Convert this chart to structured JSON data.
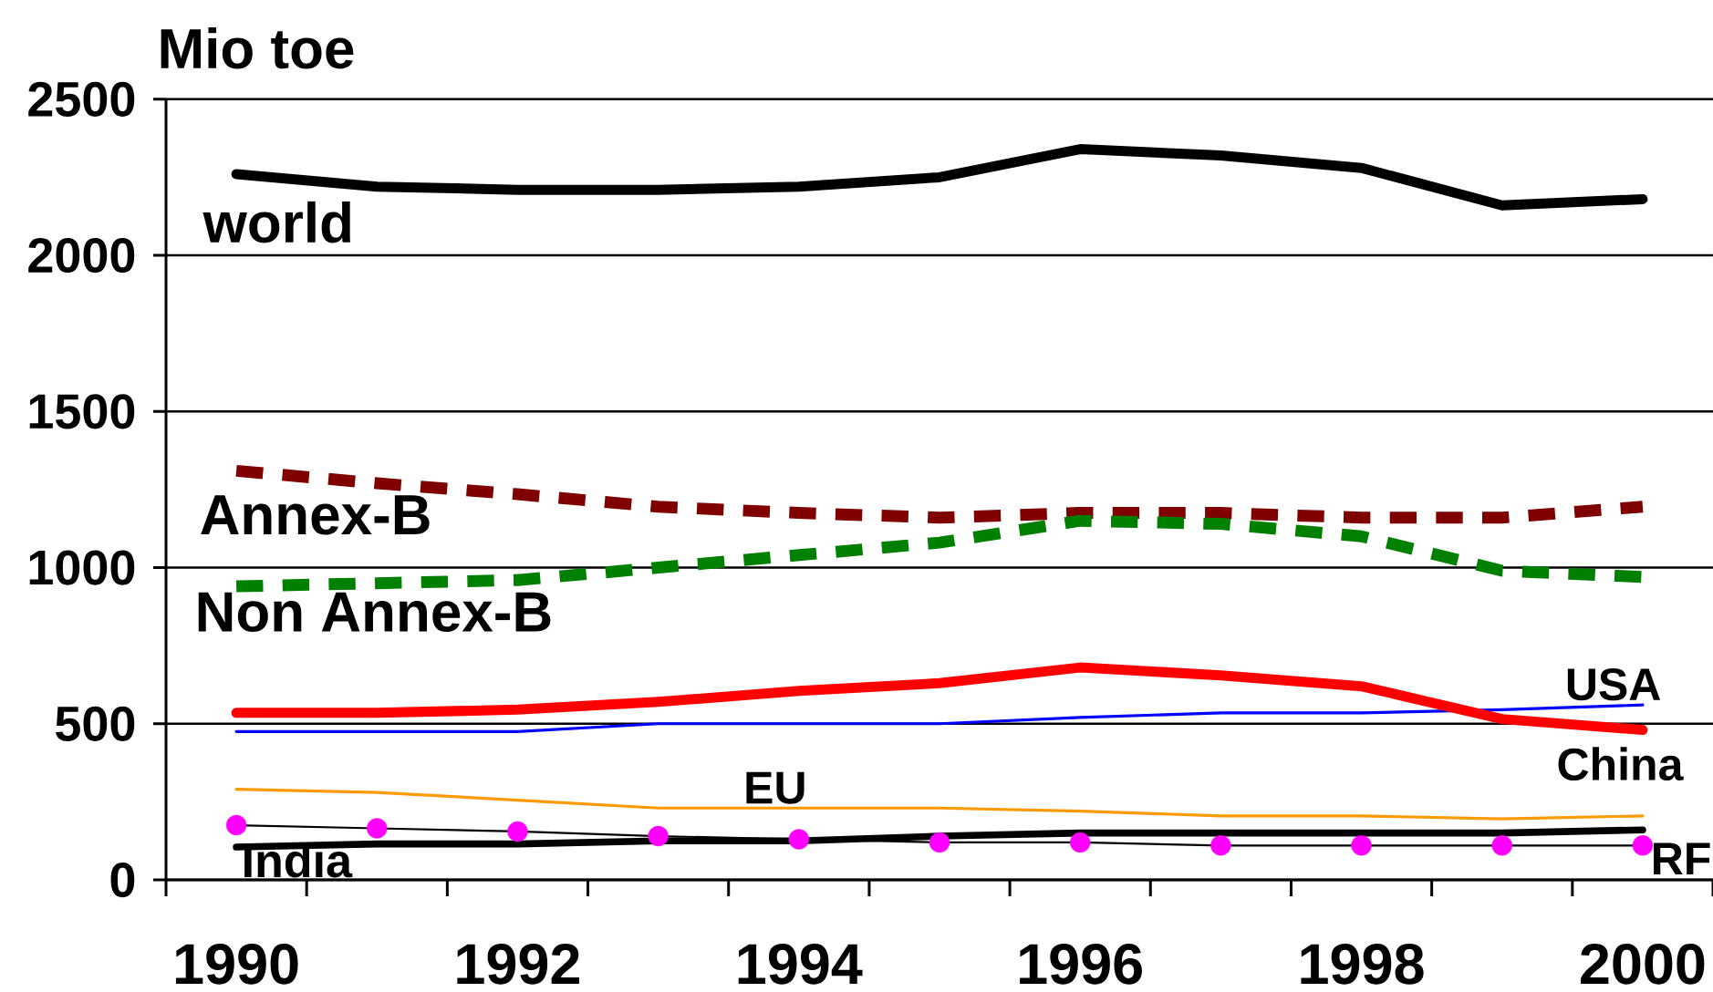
{
  "chart_data": {
    "type": "line",
    "ylabel": "Mio toe",
    "categories": [
      "1990",
      null,
      "1992",
      null,
      "1994",
      null,
      "1996",
      null,
      "1998",
      null,
      "2000"
    ],
    "ylim": [
      0,
      2500
    ],
    "yticks": [
      0,
      500,
      1000,
      1500,
      2000,
      2500
    ],
    "grid": "y",
    "series": [
      {
        "name": "world",
        "color": "#000000",
        "values": [
          2260,
          2220,
          2210,
          2210,
          2220,
          2250,
          2340,
          2320,
          2280,
          2160,
          2180
        ]
      },
      {
        "name": "Annex-B",
        "color": "#800000",
        "line_style": "dashed",
        "values": [
          1310,
          1270,
          1235,
          1195,
          1175,
          1160,
          1175,
          1175,
          1160,
          1160,
          1195
        ]
      },
      {
        "name": "Non Annex-B",
        "color": "#008000",
        "line_style": "dashed",
        "values": [
          940,
          950,
          960,
          1000,
          1040,
          1080,
          1150,
          1140,
          1100,
          990,
          970
        ]
      },
      {
        "name": "USA",
        "color": "#0000ff",
        "values": [
          475,
          475,
          475,
          500,
          500,
          500,
          520,
          535,
          535,
          545,
          560
        ]
      },
      {
        "name": "China",
        "color": "#ff0000",
        "values": [
          535,
          535,
          545,
          570,
          605,
          630,
          680,
          655,
          620,
          515,
          480
        ]
      },
      {
        "name": "EU",
        "color": "#ff9900",
        "values": [
          290,
          280,
          255,
          230,
          230,
          230,
          220,
          205,
          205,
          195,
          205
        ]
      },
      {
        "name": "India",
        "color": "#000000",
        "values": [
          105,
          115,
          115,
          125,
          125,
          140,
          150,
          150,
          150,
          150,
          160
        ]
      },
      {
        "name": "RF",
        "color": "#000000",
        "marker": "circle",
        "colors": [
          "#ff00ff",
          "#ff00ff",
          "#ff00ff",
          "#ff00ff",
          "#ff00ff",
          "#ff00ff",
          "#ff00ff",
          "#ff00ff",
          "#ff00ff",
          "#ff00ff",
          "#ff00ff"
        ],
        "values": [
          175,
          165,
          155,
          140,
          130,
          120,
          120,
          110,
          110,
          110,
          110
        ]
      }
    ]
  }
}
